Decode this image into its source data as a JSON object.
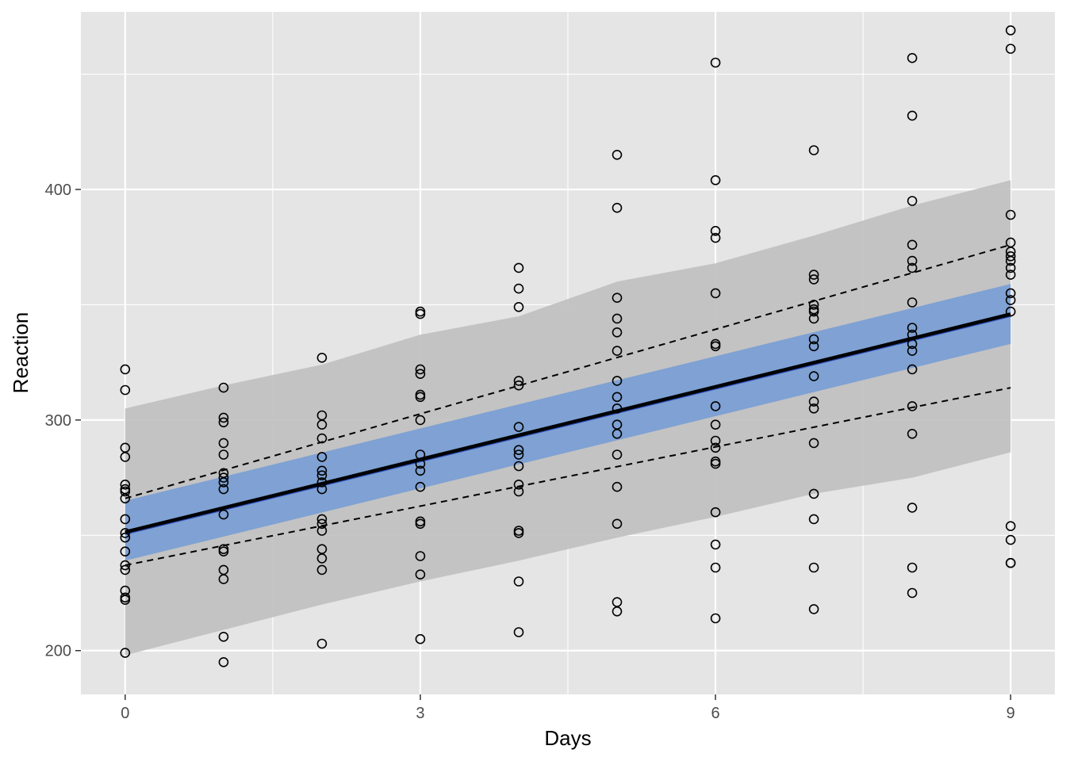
{
  "chart_data": {
    "type": "scatter",
    "title": "",
    "xlabel": "Days",
    "ylabel": "Reaction",
    "xlim": [
      -0.45,
      9.45
    ],
    "ylim": [
      181,
      477
    ],
    "x_ticks": [
      0,
      3,
      6,
      9
    ],
    "x_minor_ticks": [
      1.5,
      4.5,
      7.5
    ],
    "y_ticks": [
      200,
      300,
      400
    ],
    "y_minor_ticks": [
      250,
      350,
      450
    ],
    "grid": true,
    "colors": {
      "panel": "#e5e5e5",
      "grid": "#ffffff",
      "outer_band": "#bfbfbf",
      "inner_band": "#7b9fd4",
      "line": "#000000",
      "points": "#000000"
    },
    "points": [
      [
        0,
        322
      ],
      [
        0,
        313
      ],
      [
        0,
        288
      ],
      [
        0,
        284
      ],
      [
        0,
        272
      ],
      [
        0,
        270
      ],
      [
        0,
        269
      ],
      [
        0,
        266
      ],
      [
        0,
        257
      ],
      [
        0,
        251
      ],
      [
        0,
        249
      ],
      [
        0,
        243
      ],
      [
        0,
        237
      ],
      [
        0,
        235
      ],
      [
        0,
        226
      ],
      [
        0,
        223
      ],
      [
        0,
        222
      ],
      [
        0,
        199
      ],
      [
        1,
        314
      ],
      [
        1,
        301
      ],
      [
        1,
        299
      ],
      [
        1,
        290
      ],
      [
        1,
        285
      ],
      [
        1,
        277
      ],
      [
        1,
        275
      ],
      [
        1,
        273
      ],
      [
        1,
        270
      ],
      [
        1,
        259
      ],
      [
        1,
        244
      ],
      [
        1,
        243
      ],
      [
        1,
        235
      ],
      [
        1,
        231
      ],
      [
        1,
        206
      ],
      [
        1,
        195
      ],
      [
        2,
        327
      ],
      [
        2,
        302
      ],
      [
        2,
        298
      ],
      [
        2,
        292
      ],
      [
        2,
        284
      ],
      [
        2,
        278
      ],
      [
        2,
        276
      ],
      [
        2,
        273
      ],
      [
        2,
        270
      ],
      [
        2,
        257
      ],
      [
        2,
        255
      ],
      [
        2,
        252
      ],
      [
        2,
        244
      ],
      [
        2,
        240
      ],
      [
        2,
        235
      ],
      [
        2,
        203
      ],
      [
        3,
        347
      ],
      [
        3,
        346
      ],
      [
        3,
        322
      ],
      [
        3,
        320
      ],
      [
        3,
        311
      ],
      [
        3,
        310
      ],
      [
        3,
        300
      ],
      [
        3,
        285
      ],
      [
        3,
        281
      ],
      [
        3,
        278
      ],
      [
        3,
        271
      ],
      [
        3,
        256
      ],
      [
        3,
        255
      ],
      [
        3,
        241
      ],
      [
        3,
        233
      ],
      [
        3,
        205
      ],
      [
        4,
        366
      ],
      [
        4,
        357
      ],
      [
        4,
        349
      ],
      [
        4,
        317
      ],
      [
        4,
        315
      ],
      [
        4,
        297
      ],
      [
        4,
        287
      ],
      [
        4,
        285
      ],
      [
        4,
        280
      ],
      [
        4,
        272
      ],
      [
        4,
        269
      ],
      [
        4,
        252
      ],
      [
        4,
        251
      ],
      [
        4,
        230
      ],
      [
        4,
        208
      ],
      [
        5,
        415
      ],
      [
        5,
        392
      ],
      [
        5,
        353
      ],
      [
        5,
        344
      ],
      [
        5,
        338
      ],
      [
        5,
        330
      ],
      [
        5,
        317
      ],
      [
        5,
        310
      ],
      [
        5,
        305
      ],
      [
        5,
        298
      ],
      [
        5,
        294
      ],
      [
        5,
        285
      ],
      [
        5,
        271
      ],
      [
        5,
        255
      ],
      [
        5,
        221
      ],
      [
        5,
        217
      ],
      [
        6,
        455
      ],
      [
        6,
        404
      ],
      [
        6,
        382
      ],
      [
        6,
        379
      ],
      [
        6,
        355
      ],
      [
        6,
        333
      ],
      [
        6,
        332
      ],
      [
        6,
        306
      ],
      [
        6,
        298
      ],
      [
        6,
        291
      ],
      [
        6,
        288
      ],
      [
        6,
        282
      ],
      [
        6,
        281
      ],
      [
        6,
        260
      ],
      [
        6,
        246
      ],
      [
        6,
        236
      ],
      [
        6,
        214
      ],
      [
        7,
        417
      ],
      [
        7,
        363
      ],
      [
        7,
        361
      ],
      [
        7,
        350
      ],
      [
        7,
        348
      ],
      [
        7,
        347
      ],
      [
        7,
        344
      ],
      [
        7,
        335
      ],
      [
        7,
        332
      ],
      [
        7,
        319
      ],
      [
        7,
        308
      ],
      [
        7,
        305
      ],
      [
        7,
        290
      ],
      [
        7,
        268
      ],
      [
        7,
        257
      ],
      [
        7,
        236
      ],
      [
        7,
        218
      ],
      [
        8,
        457
      ],
      [
        8,
        432
      ],
      [
        8,
        395
      ],
      [
        8,
        376
      ],
      [
        8,
        369
      ],
      [
        8,
        366
      ],
      [
        8,
        351
      ],
      [
        8,
        340
      ],
      [
        8,
        337
      ],
      [
        8,
        333
      ],
      [
        8,
        330
      ],
      [
        8,
        322
      ],
      [
        8,
        306
      ],
      [
        8,
        294
      ],
      [
        8,
        262
      ],
      [
        8,
        236
      ],
      [
        8,
        225
      ],
      [
        9,
        469
      ],
      [
        9,
        461
      ],
      [
        9,
        389
      ],
      [
        9,
        377
      ],
      [
        9,
        373
      ],
      [
        9,
        371
      ],
      [
        9,
        369
      ],
      [
        9,
        366
      ],
      [
        9,
        363
      ],
      [
        9,
        355
      ],
      [
        9,
        352
      ],
      [
        9,
        347
      ],
      [
        9,
        254
      ],
      [
        9,
        248
      ],
      [
        9,
        238
      ],
      [
        9,
        238
      ]
    ],
    "fit_line": {
      "x": [
        0,
        9
      ],
      "y": [
        251.4,
        345.9
      ]
    },
    "inner_band": {
      "x": [
        0,
        9
      ],
      "lower": [
        239,
        333
      ],
      "upper": [
        265,
        359
      ]
    },
    "dashed_lines": [
      {
        "x": [
          0,
          9
        ],
        "y": [
          266,
          376
        ]
      },
      {
        "x": [
          0,
          9
        ],
        "y": [
          237,
          314
        ]
      }
    ],
    "outer_band": {
      "x": [
        0,
        1,
        2,
        3,
        4,
        5,
        6,
        7,
        8,
        9
      ],
      "upper": [
        305,
        315,
        324,
        337,
        345,
        360,
        368,
        380,
        393,
        404
      ],
      "lower": [
        198,
        209,
        220,
        230,
        239,
        249,
        258,
        268,
        275,
        286
      ]
    }
  }
}
